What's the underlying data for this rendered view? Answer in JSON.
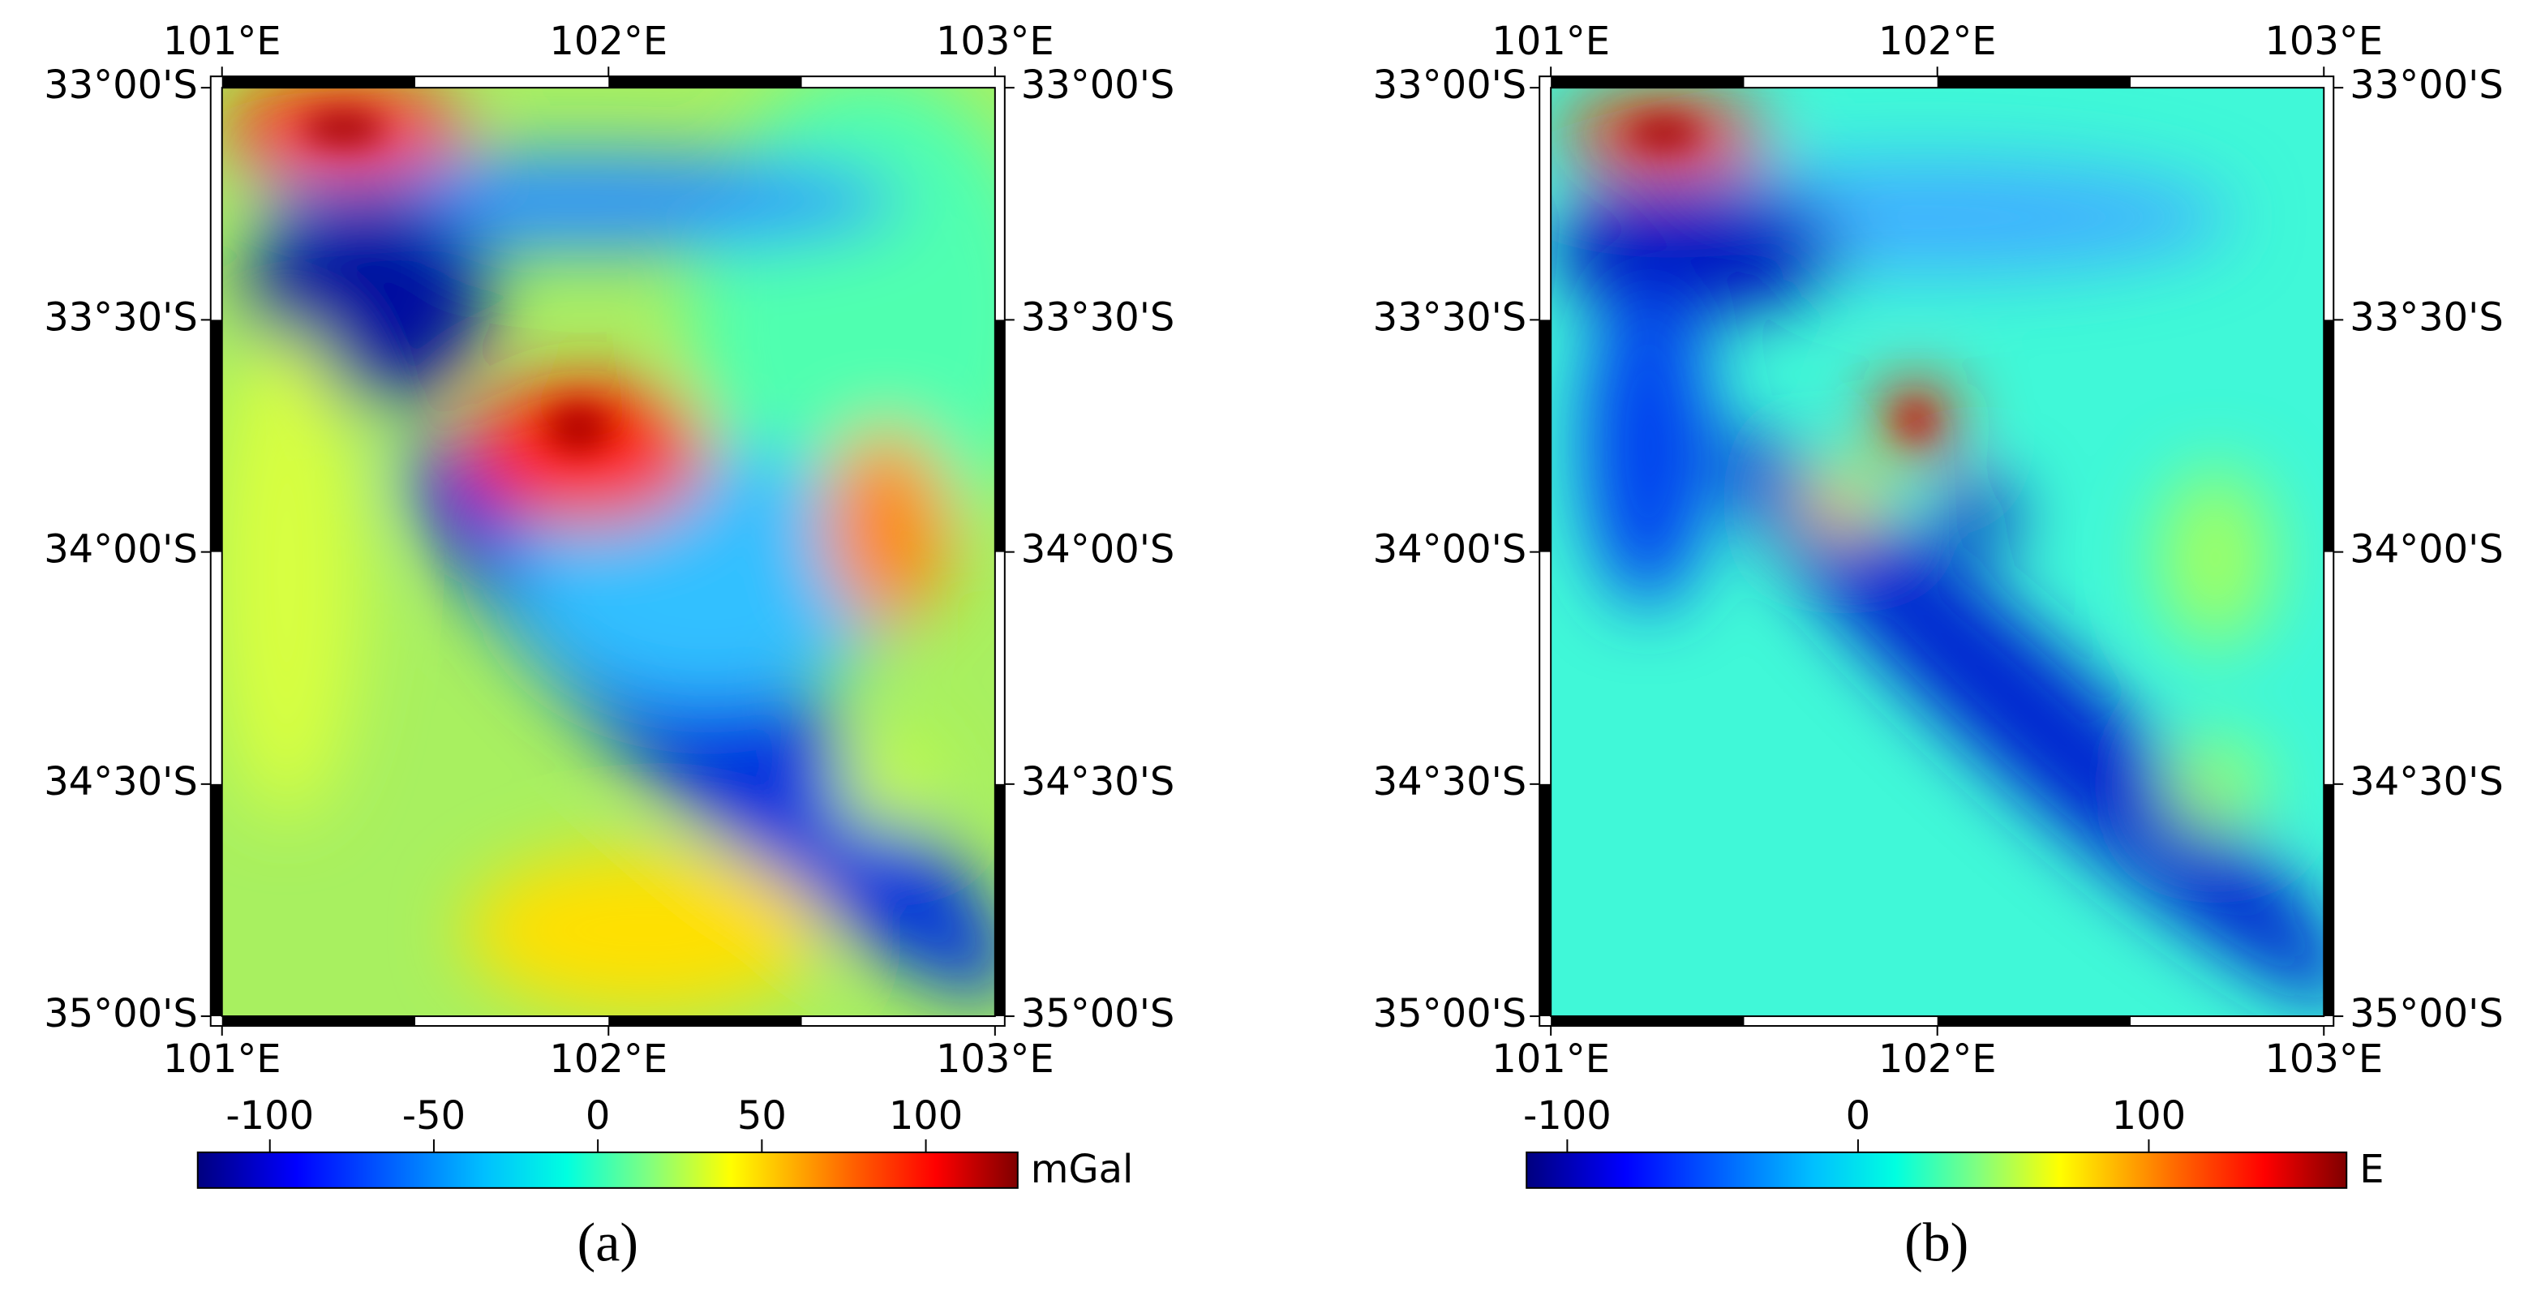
{
  "figure": {
    "panels": [
      {
        "label": "(a)",
        "xlim": [
          101,
          103
        ],
        "ylim": [
          -35,
          -33
        ],
        "xticks": [
          {
            "value": 101,
            "label": "101°E"
          },
          {
            "value": 102,
            "label": "102°E"
          },
          {
            "value": 103,
            "label": "103°E"
          }
        ],
        "yticks": [
          {
            "value": -33,
            "label": "33°00'S"
          },
          {
            "value": -33.5,
            "label": "33°30'S"
          },
          {
            "value": -34,
            "label": "34°00'S"
          },
          {
            "value": -34.5,
            "label": "34°30'S"
          },
          {
            "value": -35,
            "label": "35°00'S"
          }
        ],
        "colorbar": {
          "range": [
            -122,
            128
          ],
          "ticks": [
            -100,
            -50,
            0,
            50,
            100
          ],
          "unit": "mGal"
        }
      },
      {
        "label": "(b)",
        "xlim": [
          101,
          103
        ],
        "ylim": [
          -35,
          -33
        ],
        "xticks": [
          {
            "value": 101,
            "label": "101°E"
          },
          {
            "value": 102,
            "label": "102°E"
          },
          {
            "value": 103,
            "label": "103°E"
          }
        ],
        "yticks": [
          {
            "value": -33,
            "label": "33°00'S"
          },
          {
            "value": -33.5,
            "label": "33°30'S"
          },
          {
            "value": -34,
            "label": "34°00'S"
          },
          {
            "value": -34.5,
            "label": "34°30'S"
          },
          {
            "value": -35,
            "label": "35°00'S"
          }
        ],
        "colorbar": {
          "range": [
            -114,
            168
          ],
          "ticks": [
            -100,
            0,
            100
          ],
          "unit": "E"
        }
      }
    ]
  }
}
